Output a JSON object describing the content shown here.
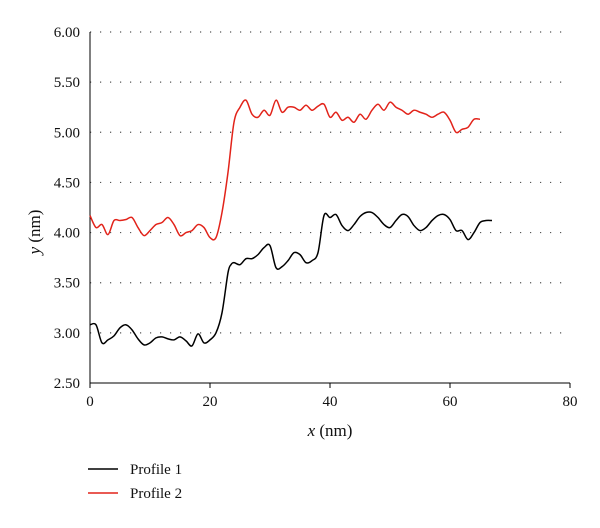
{
  "chart_data": {
    "type": "line",
    "title": "",
    "xlabel": {
      "var": "x",
      "unit": " (nm)"
    },
    "ylabel": {
      "var": "y",
      "unit": " (nm)"
    },
    "xlim": [
      0,
      80
    ],
    "ylim": [
      2.5,
      6.0
    ],
    "xticks": [
      0,
      20,
      40,
      60,
      80
    ],
    "xtick_labels": [
      "0",
      "20",
      "40",
      "60",
      "80"
    ],
    "yticks": [
      2.5,
      3.0,
      3.5,
      4.0,
      4.5,
      5.0,
      5.5,
      6.0
    ],
    "ytick_labels": [
      "2.50",
      "3.00",
      "3.50",
      "4.00",
      "4.50",
      "5.00",
      "5.50",
      "6.00"
    ],
    "grid": "horizontal dotted",
    "legend_position": "bottom-left",
    "series": [
      {
        "name": "Profile 1",
        "color": "#000000",
        "x": [
          0,
          1,
          2,
          3,
          4,
          5,
          6,
          7,
          8,
          9,
          10,
          11,
          12,
          13,
          14,
          15,
          16,
          17,
          18,
          19,
          20,
          21,
          22,
          23,
          23.5,
          24,
          25,
          26,
          27,
          28,
          29,
          30,
          31,
          32,
          33,
          34,
          35,
          36,
          37,
          38,
          39,
          40,
          41,
          42,
          43,
          44,
          45,
          46,
          47,
          48,
          49,
          50,
          51,
          52,
          53,
          54,
          55,
          56,
          57,
          58,
          59,
          60,
          61,
          62,
          63,
          64,
          65,
          66,
          67
        ],
        "y": [
          3.08,
          3.08,
          2.9,
          2.93,
          2.97,
          3.05,
          3.08,
          3.03,
          2.94,
          2.88,
          2.9,
          2.95,
          2.96,
          2.94,
          2.93,
          2.96,
          2.92,
          2.87,
          2.99,
          2.9,
          2.93,
          3.0,
          3.2,
          3.6,
          3.68,
          3.7,
          3.68,
          3.74,
          3.74,
          3.78,
          3.85,
          3.87,
          3.65,
          3.66,
          3.72,
          3.8,
          3.78,
          3.7,
          3.72,
          3.8,
          4.17,
          4.15,
          4.18,
          4.07,
          4.02,
          4.08,
          4.16,
          4.2,
          4.2,
          4.15,
          4.08,
          4.05,
          4.12,
          4.18,
          4.16,
          4.07,
          4.02,
          4.05,
          4.12,
          4.17,
          4.18,
          4.13,
          4.02,
          4.02,
          3.93,
          4.0,
          4.1,
          4.12,
          4.12
        ]
      },
      {
        "name": "Profile 2",
        "color": "#e2231a",
        "x": [
          0,
          1,
          2,
          3,
          4,
          5,
          6,
          7,
          8,
          9,
          10,
          11,
          12,
          13,
          14,
          15,
          16,
          17,
          18,
          19,
          20,
          21,
          22,
          23,
          24,
          25,
          26,
          27,
          28,
          29,
          30,
          31,
          32,
          33,
          34,
          35,
          36,
          37,
          38,
          39,
          40,
          41,
          42,
          43,
          44,
          45,
          46,
          47,
          48,
          49,
          50,
          51,
          52,
          53,
          54,
          55,
          56,
          57,
          58,
          59,
          60,
          61,
          62,
          63,
          64,
          65
        ],
        "y": [
          4.17,
          4.05,
          4.08,
          3.98,
          4.12,
          4.12,
          4.13,
          4.15,
          4.05,
          3.97,
          4.02,
          4.08,
          4.1,
          4.15,
          4.08,
          3.97,
          4.0,
          4.02,
          4.08,
          4.05,
          3.95,
          3.95,
          4.2,
          4.6,
          5.1,
          5.25,
          5.32,
          5.18,
          5.15,
          5.22,
          5.17,
          5.32,
          5.2,
          5.25,
          5.25,
          5.22,
          5.27,
          5.22,
          5.26,
          5.28,
          5.15,
          5.2,
          5.12,
          5.15,
          5.1,
          5.18,
          5.13,
          5.22,
          5.28,
          5.22,
          5.3,
          5.25,
          5.22,
          5.18,
          5.22,
          5.2,
          5.18,
          5.15,
          5.18,
          5.2,
          5.12,
          5.0,
          5.03,
          5.05,
          5.13,
          5.13
        ]
      }
    ]
  }
}
